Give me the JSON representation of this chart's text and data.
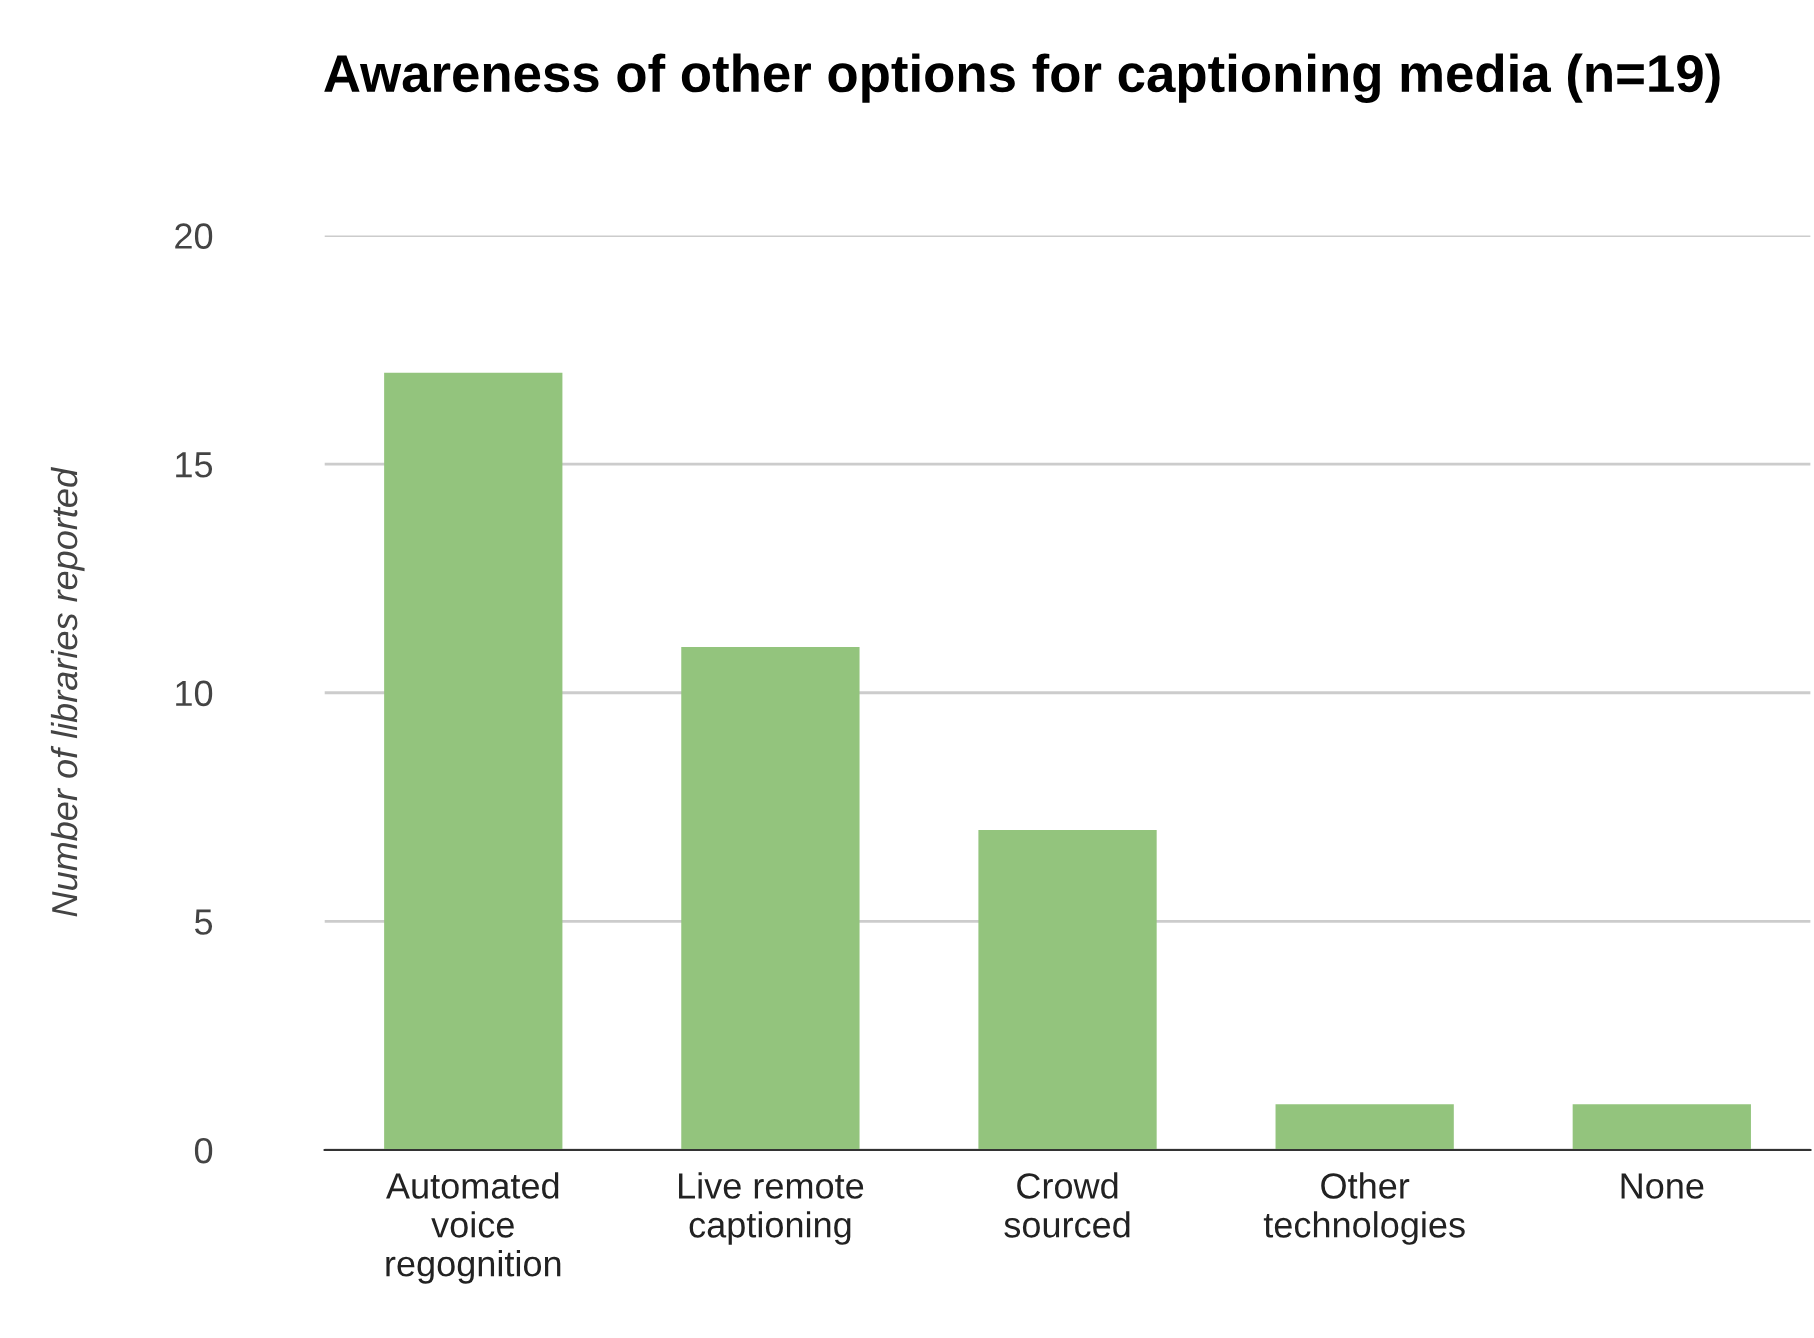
{
  "chart_data": {
    "type": "bar",
    "title": "Awareness of other options for captioning media (n=19)",
    "ylabel": "Number of libraries reported",
    "categories": [
      "Automated\nvoice\nregognition",
      "Live remote\ncaptioning",
      "Crowd\nsourced",
      "Other\ntechnologies",
      "None"
    ],
    "values": [
      17,
      11,
      7,
      1,
      1
    ],
    "color": "#93c47d",
    "ylim": [
      0,
      20
    ],
    "yticks": [
      0,
      5,
      10,
      15,
      20
    ],
    "grid": "y",
    "legend": false
  }
}
